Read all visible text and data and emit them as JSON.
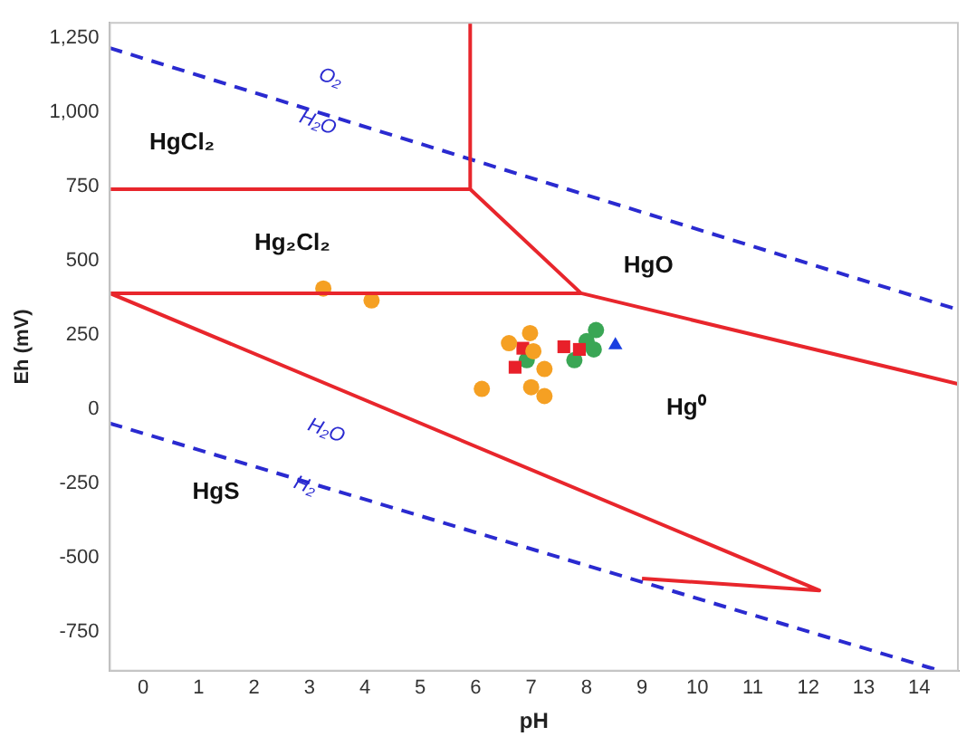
{
  "chart_data": {
    "type": "scatter",
    "xlabel": "pH",
    "ylabel": "Eh (mV)",
    "xlim": [
      -0.6,
      14.7
    ],
    "ylim": [
      -880,
      1300
    ],
    "xticks": [
      0,
      1,
      2,
      3,
      4,
      5,
      6,
      7,
      8,
      9,
      10,
      11,
      12,
      13,
      14
    ],
    "yticks": [
      -750,
      -500,
      -250,
      0,
      250,
      500,
      750,
      {
        "value": 1000,
        "label": "1,000"
      },
      {
        "value": 1250,
        "label": "1,250"
      }
    ],
    "grid": false,
    "legend": false,
    "series": [
      {
        "type": "line",
        "color": "#e8262c",
        "marker": "none",
        "line_style": "solid",
        "x": [
          5.9,
          5.9,
          -0.6
        ],
        "values": [
          1300,
          740,
          740
        ]
      },
      {
        "type": "line",
        "color": "#e8262c",
        "marker": "none",
        "line_style": "solid",
        "x": [
          5.9,
          7.9,
          14.7
        ],
        "values": [
          740,
          390,
          85
        ]
      },
      {
        "type": "line",
        "color": "#e8262c",
        "marker": "none",
        "line_style": "solid",
        "x": [
          -0.6,
          7.9
        ],
        "values": [
          390,
          390
        ]
      },
      {
        "type": "line",
        "color": "#e8262c",
        "marker": "none",
        "line_style": "solid",
        "x": [
          -0.6,
          12.2,
          9.0
        ],
        "values": [
          390,
          -610,
          -570
        ]
      },
      {
        "type": "line",
        "color": "#2a2ad0",
        "marker": "none",
        "line_style": "dashed",
        "x": [
          -0.6,
          14.7
        ],
        "values": [
          1215,
          335
        ]
      },
      {
        "type": "line",
        "color": "#2a2ad0",
        "marker": "none",
        "line_style": "dashed",
        "x": [
          -0.6,
          14.3
        ],
        "values": [
          -48,
          -876
        ]
      },
      {
        "color": "#f5a023",
        "marker": "circle",
        "x": [
          3.25,
          4.12,
          6.6,
          6.98,
          7.24,
          6.11,
          7.0,
          7.24,
          7.04
        ],
        "values": [
          406,
          366,
          222,
          256,
          135,
          68,
          74,
          44,
          195
        ]
      },
      {
        "color": "#e8202a",
        "marker": "square",
        "x": [
          6.85,
          6.71,
          7.59,
          7.87
        ],
        "values": [
          205,
          141,
          210,
          201
        ]
      },
      {
        "color": "#3aa655",
        "marker": "circle",
        "x": [
          6.92,
          8.17,
          8.0,
          7.78,
          8.13
        ],
        "values": [
          165,
          266,
          229,
          165,
          201
        ]
      },
      {
        "color": "#1a3fe0",
        "marker": "triangle",
        "x": [
          8.52
        ],
        "values": [
          215
        ]
      }
    ],
    "annotations": [
      "HgCl₂",
      "Hg₂Cl₂",
      "HgO",
      "Hg⁰",
      "HgS",
      "O₂",
      "H₂O",
      "H₂O",
      "H₂"
    ]
  }
}
